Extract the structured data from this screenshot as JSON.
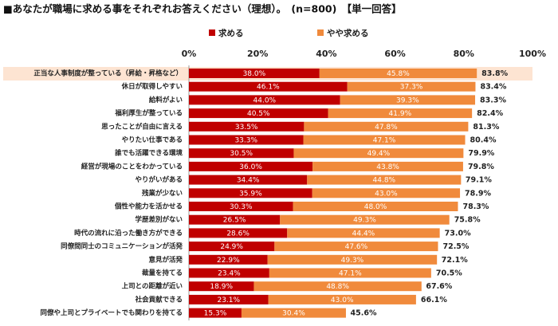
{
  "chart_data": {
    "type": "stacked_bar_horizontal",
    "title": "■あなたが職場に求める事をそれぞれお答えください（理想）。　(n=800)　【単一回答】",
    "categories": [
      "正当な人事制度が整っている（昇給・昇格など）",
      "休日が取得しやすい",
      "給料がよい",
      "福利厚生が整っている",
      "思ったことが自由に言える",
      "やりたい仕事である",
      "誰でも活躍できる環境",
      "経営が現場のことをわかっている",
      "やりがいがある",
      "残業が少ない",
      "個性や能力を活かせる",
      "学歴差別がない",
      "時代の流れに沿った働き方ができる",
      "同僚間同士のコミュニケーションが活発",
      "意見が活発",
      "裁量を持てる",
      "上司との距離が近い",
      "社会貢献できる",
      "同僚や上司とプライベートでも関わりを持てる"
    ],
    "series": [
      {
        "name": "求める",
        "color": "#c00000",
        "values": [
          38.0,
          46.1,
          44.0,
          40.5,
          33.5,
          33.3,
          30.5,
          36.0,
          34.4,
          35.9,
          30.3,
          26.5,
          28.6,
          24.9,
          22.9,
          23.4,
          18.9,
          23.1,
          15.3
        ],
        "value_labels": [
          "38.0%",
          "46.1%",
          "44.0%",
          "40.5%",
          "33.5%",
          "33.3%",
          "30.5%",
          "36.0%",
          "34.4%",
          "35.9%",
          "30.3%",
          "26.5%",
          "28.6%",
          "24.9%",
          "22.9%",
          "23.4%",
          "18.9%",
          "23.1%",
          "15.3%"
        ]
      },
      {
        "name": "やや求める",
        "color": "#f08a3c",
        "values": [
          45.8,
          37.3,
          39.3,
          41.9,
          47.8,
          47.1,
          49.4,
          43.8,
          44.8,
          43.0,
          48.0,
          49.3,
          44.4,
          47.6,
          49.3,
          47.1,
          48.8,
          43.0,
          30.4
        ],
        "value_labels": [
          "45.8%",
          "37.3%",
          "39.3%",
          "41.9%",
          "47.8%",
          "47.1%",
          "49.4%",
          "43.8%",
          "44.8%",
          "43.0%",
          "48.0%",
          "49.3%",
          "44.4%",
          "47.6%",
          "49.3%",
          "47.1%",
          "48.8%",
          "43.0%",
          "30.4%"
        ]
      }
    ],
    "totals": [
      83.8,
      83.4,
      83.3,
      82.4,
      81.3,
      80.4,
      79.9,
      79.8,
      79.1,
      78.9,
      78.3,
      75.8,
      73.0,
      72.5,
      72.1,
      70.5,
      67.6,
      66.1,
      45.6
    ],
    "total_labels": [
      "83.8%",
      "83.4%",
      "83.3%",
      "82.4%",
      "81.3%",
      "80.4%",
      "79.9%",
      "79.8%",
      "79.1%",
      "78.9%",
      "78.3%",
      "75.8%",
      "73.0%",
      "72.5%",
      "72.1%",
      "70.5%",
      "67.6%",
      "66.1%",
      "45.6%"
    ],
    "xlim": [
      0,
      100
    ],
    "xticks": [
      {
        "value": 0,
        "label": "0%"
      },
      {
        "value": 20,
        "label": "20%"
      },
      {
        "value": 40,
        "label": "40%"
      },
      {
        "value": 60,
        "label": "60%"
      },
      {
        "value": 80,
        "label": "80%"
      },
      {
        "value": 100,
        "label": "100%"
      }
    ],
    "grid": false
  }
}
